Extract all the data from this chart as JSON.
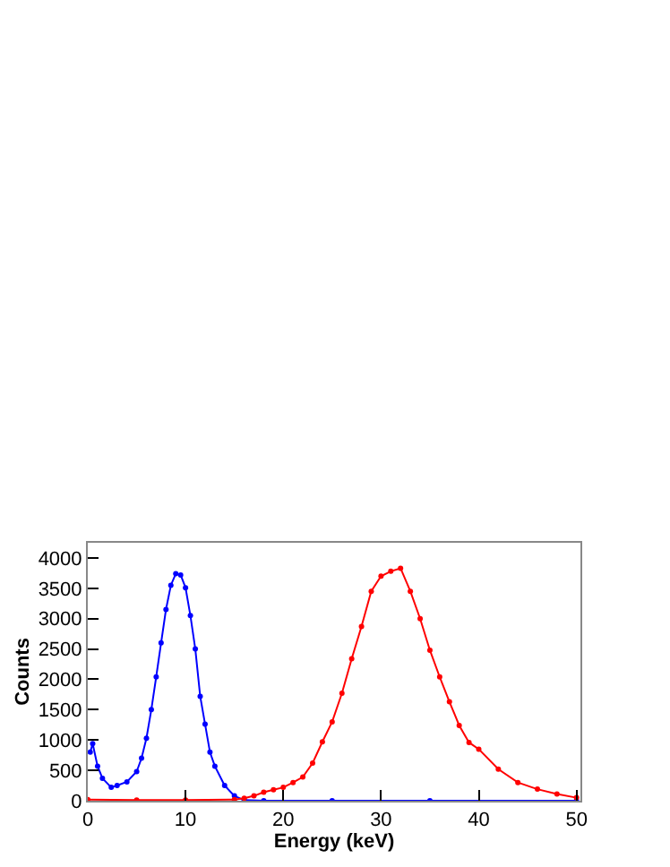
{
  "chart_data": {
    "type": "line",
    "xlabel": "Energy (keV)",
    "ylabel": "Counts",
    "xlim": [
      0,
      50.4
    ],
    "ylim": [
      0,
      4250
    ],
    "xticks": [
      0,
      10,
      20,
      30,
      40,
      50
    ],
    "yticks": [
      0,
      500,
      1000,
      1500,
      2000,
      2500,
      3000,
      3500,
      4000
    ],
    "marker": "circle",
    "line_style": "solid",
    "series": [
      {
        "color": "#0000ff",
        "x": [
          0.25,
          0.5,
          1,
          1.5,
          2.4,
          3,
          4,
          5,
          5.5,
          6,
          6.5,
          7,
          7.5,
          8,
          8.5,
          9,
          9.5,
          10,
          10.5,
          11,
          11.5,
          12,
          12.5,
          13,
          14,
          15,
          16,
          18,
          25,
          35,
          50
        ],
        "values": [
          800,
          940,
          570,
          370,
          220,
          250,
          310,
          480,
          700,
          1030,
          1500,
          2040,
          2600,
          3150,
          3550,
          3740,
          3720,
          3510,
          3050,
          2500,
          1720,
          1260,
          800,
          570,
          250,
          80,
          10,
          0,
          0,
          0,
          0
        ]
      },
      {
        "color": "#ff0000",
        "x": [
          0,
          5,
          10,
          15,
          16,
          17,
          18,
          19,
          20,
          21,
          22,
          23,
          24,
          25,
          26,
          27,
          28,
          29,
          30,
          31,
          32,
          33,
          34,
          35,
          36,
          37,
          38,
          39,
          40,
          42,
          44,
          46,
          48,
          50
        ],
        "values": [
          20,
          10,
          10,
          20,
          40,
          80,
          140,
          180,
          220,
          300,
          390,
          620,
          970,
          1300,
          1770,
          2340,
          2870,
          3450,
          3700,
          3780,
          3830,
          3450,
          3000,
          2480,
          2040,
          1630,
          1240,
          960,
          850,
          520,
          300,
          190,
          110,
          50
        ]
      }
    ]
  }
}
